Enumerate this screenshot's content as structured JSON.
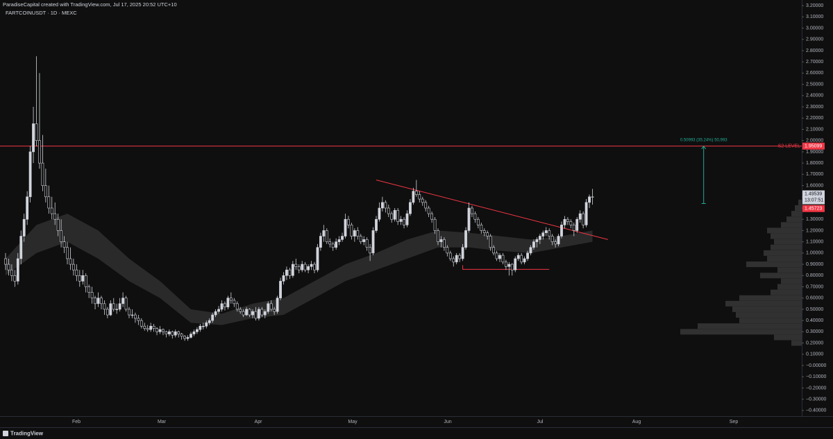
{
  "header": {
    "credit": "ParadiseCapital created with TradingView.com, Jul 17, 2025 20:52 UTC+10",
    "symbol": "FARTCOINUSDT · 1D · MEXC"
  },
  "footer": {
    "brand": "TradingView"
  },
  "chart_data": {
    "type": "candlestick",
    "up_color": "#d1d4dc",
    "down_color": "#0f0f0f",
    "ylim": [
      -0.45,
      3.25
    ],
    "yticks": [
      {
        "value": 3.2,
        "label": "3.20000"
      },
      {
        "value": 3.1,
        "label": "3.10000"
      },
      {
        "value": 3.0,
        "label": "3.00000"
      },
      {
        "value": 2.9,
        "label": "2.90000"
      },
      {
        "value": 2.8,
        "label": "2.80000"
      },
      {
        "value": 2.7,
        "label": "2.70000"
      },
      {
        "value": 2.6,
        "label": "2.60000"
      },
      {
        "value": 2.5,
        "label": "2.50000"
      },
      {
        "value": 2.4,
        "label": "2.40000"
      },
      {
        "value": 2.3,
        "label": "2.30000"
      },
      {
        "value": 2.2,
        "label": "2.20000"
      },
      {
        "value": 2.1,
        "label": "2.10000"
      },
      {
        "value": 2.0,
        "label": "2.00000"
      },
      {
        "value": 1.9,
        "label": "1.90000"
      },
      {
        "value": 1.8,
        "label": "1.80000"
      },
      {
        "value": 1.7,
        "label": "1.70000"
      },
      {
        "value": 1.6,
        "label": "1.60000"
      },
      {
        "value": 1.5,
        "label": "1.50000"
      },
      {
        "value": 1.4,
        "label": "1.40000"
      },
      {
        "value": 1.3,
        "label": "1.30000"
      },
      {
        "value": 1.2,
        "label": "1.20000"
      },
      {
        "value": 1.1,
        "label": "1.10000"
      },
      {
        "value": 1.0,
        "label": "1.00000"
      },
      {
        "value": 0.9,
        "label": "0.90000"
      },
      {
        "value": 0.8,
        "label": "0.80000"
      },
      {
        "value": 0.7,
        "label": "0.70000"
      },
      {
        "value": 0.6,
        "label": "0.60000"
      },
      {
        "value": 0.5,
        "label": "0.50000"
      },
      {
        "value": 0.4,
        "label": "0.40000"
      },
      {
        "value": 0.3,
        "label": "0.30000"
      },
      {
        "value": 0.2,
        "label": "0.20000"
      },
      {
        "value": 0.1,
        "label": "0.10000"
      },
      {
        "value": 0,
        "label": "−0.00000"
      },
      {
        "value": -0.1,
        "label": "−0.10000"
      },
      {
        "value": -0.2,
        "label": "−0.20000"
      },
      {
        "value": -0.3,
        "label": "−0.30000"
      },
      {
        "value": -0.4,
        "label": "−0.40000"
      }
    ],
    "months": [
      "Feb",
      "Mar",
      "Apr",
      "May",
      "Jun",
      "Jul",
      "Aug",
      "Sep"
    ],
    "candles": [
      [
        0.95,
        1.0,
        0.85,
        0.9
      ],
      [
        0.9,
        0.95,
        0.8,
        0.85
      ],
      [
        0.85,
        0.9,
        0.75,
        0.8
      ],
      [
        0.8,
        0.85,
        0.7,
        0.75
      ],
      [
        0.75,
        1.0,
        0.72,
        0.95
      ],
      [
        0.95,
        1.2,
        0.9,
        1.15
      ],
      [
        1.15,
        1.35,
        1.1,
        1.3
      ],
      [
        1.3,
        1.55,
        1.25,
        1.5
      ],
      [
        1.5,
        1.95,
        1.45,
        1.9
      ],
      [
        1.9,
        2.3,
        1.8,
        2.15
      ],
      [
        2.15,
        2.75,
        1.95,
        2.0
      ],
      [
        2.0,
        2.6,
        1.75,
        1.8
      ],
      [
        1.8,
        2.05,
        1.55,
        1.6
      ],
      [
        1.6,
        1.75,
        1.45,
        1.5
      ],
      [
        1.5,
        1.6,
        1.35,
        1.4
      ],
      [
        1.4,
        1.5,
        1.3,
        1.35
      ],
      [
        1.35,
        1.45,
        1.25,
        1.3
      ],
      [
        1.3,
        1.35,
        1.15,
        1.2
      ],
      [
        1.2,
        1.3,
        1.05,
        1.1
      ],
      [
        1.1,
        1.15,
        1.0,
        1.05
      ],
      [
        1.05,
        1.1,
        0.9,
        0.95
      ],
      [
        0.95,
        1.05,
        0.85,
        0.9
      ],
      [
        0.9,
        0.95,
        0.8,
        0.85
      ],
      [
        0.85,
        0.9,
        0.75,
        0.8
      ],
      [
        0.8,
        0.85,
        0.7,
        0.75
      ],
      [
        0.75,
        0.85,
        0.72,
        0.8
      ],
      [
        0.8,
        0.82,
        0.65,
        0.7
      ],
      [
        0.7,
        0.72,
        0.6,
        0.65
      ],
      [
        0.65,
        0.7,
        0.55,
        0.6
      ],
      [
        0.6,
        0.62,
        0.5,
        0.55
      ],
      [
        0.55,
        0.65,
        0.52,
        0.6
      ],
      [
        0.6,
        0.62,
        0.5,
        0.55
      ],
      [
        0.55,
        0.58,
        0.45,
        0.5
      ],
      [
        0.5,
        0.52,
        0.42,
        0.45
      ],
      [
        0.45,
        0.58,
        0.44,
        0.55
      ],
      [
        0.55,
        0.6,
        0.48,
        0.5
      ],
      [
        0.5,
        0.55,
        0.46,
        0.5
      ],
      [
        0.5,
        0.6,
        0.48,
        0.55
      ],
      [
        0.55,
        0.65,
        0.52,
        0.6
      ],
      [
        0.6,
        0.62,
        0.48,
        0.5
      ],
      [
        0.5,
        0.52,
        0.42,
        0.45
      ],
      [
        0.45,
        0.5,
        0.42,
        0.45
      ],
      [
        0.45,
        0.47,
        0.38,
        0.42
      ],
      [
        0.42,
        0.45,
        0.36,
        0.4
      ],
      [
        0.4,
        0.42,
        0.33,
        0.35
      ],
      [
        0.35,
        0.38,
        0.31,
        0.33
      ],
      [
        0.33,
        0.36,
        0.3,
        0.32
      ],
      [
        0.32,
        0.38,
        0.3,
        0.35
      ],
      [
        0.35,
        0.37,
        0.3,
        0.33
      ],
      [
        0.33,
        0.34,
        0.27,
        0.3
      ],
      [
        0.3,
        0.35,
        0.28,
        0.32
      ],
      [
        0.32,
        0.33,
        0.27,
        0.3
      ],
      [
        0.3,
        0.31,
        0.25,
        0.28
      ],
      [
        0.28,
        0.32,
        0.26,
        0.3
      ],
      [
        0.3,
        0.31,
        0.24,
        0.27
      ],
      [
        0.27,
        0.32,
        0.25,
        0.3
      ],
      [
        0.3,
        0.31,
        0.25,
        0.28
      ],
      [
        0.28,
        0.29,
        0.23,
        0.26
      ],
      [
        0.26,
        0.27,
        0.22,
        0.24
      ],
      [
        0.24,
        0.27,
        0.22,
        0.25
      ],
      [
        0.25,
        0.3,
        0.24,
        0.28
      ],
      [
        0.28,
        0.32,
        0.26,
        0.3
      ],
      [
        0.3,
        0.34,
        0.28,
        0.32
      ],
      [
        0.32,
        0.37,
        0.3,
        0.35
      ],
      [
        0.35,
        0.38,
        0.32,
        0.35
      ],
      [
        0.35,
        0.4,
        0.33,
        0.38
      ],
      [
        0.38,
        0.42,
        0.36,
        0.4
      ],
      [
        0.4,
        0.47,
        0.38,
        0.45
      ],
      [
        0.45,
        0.5,
        0.43,
        0.48
      ],
      [
        0.48,
        0.53,
        0.46,
        0.5
      ],
      [
        0.5,
        0.58,
        0.48,
        0.55
      ],
      [
        0.55,
        0.57,
        0.49,
        0.52
      ],
      [
        0.52,
        0.62,
        0.5,
        0.6
      ],
      [
        0.6,
        0.65,
        0.55,
        0.58
      ],
      [
        0.58,
        0.6,
        0.52,
        0.55
      ],
      [
        0.55,
        0.57,
        0.48,
        0.5
      ],
      [
        0.5,
        0.52,
        0.46,
        0.48
      ],
      [
        0.48,
        0.5,
        0.43,
        0.45
      ],
      [
        0.45,
        0.52,
        0.44,
        0.5
      ],
      [
        0.5,
        0.51,
        0.43,
        0.45
      ],
      [
        0.45,
        0.5,
        0.42,
        0.48
      ],
      [
        0.48,
        0.52,
        0.4,
        0.42
      ],
      [
        0.42,
        0.52,
        0.4,
        0.5
      ],
      [
        0.5,
        0.52,
        0.43,
        0.45
      ],
      [
        0.45,
        0.5,
        0.42,
        0.48
      ],
      [
        0.48,
        0.57,
        0.46,
        0.55
      ],
      [
        0.55,
        0.58,
        0.48,
        0.5
      ],
      [
        0.5,
        0.52,
        0.45,
        0.48
      ],
      [
        0.48,
        0.62,
        0.46,
        0.6
      ],
      [
        0.6,
        0.78,
        0.58,
        0.75
      ],
      [
        0.75,
        0.83,
        0.72,
        0.8
      ],
      [
        0.8,
        0.88,
        0.76,
        0.85
      ],
      [
        0.85,
        0.87,
        0.77,
        0.8
      ],
      [
        0.8,
        0.93,
        0.78,
        0.9
      ],
      [
        0.9,
        0.95,
        0.85,
        0.88
      ],
      [
        0.88,
        0.9,
        0.82,
        0.85
      ],
      [
        0.85,
        0.93,
        0.83,
        0.9
      ],
      [
        0.9,
        0.92,
        0.83,
        0.85
      ],
      [
        0.85,
        0.9,
        0.82,
        0.88
      ],
      [
        0.88,
        0.93,
        0.85,
        0.9
      ],
      [
        0.9,
        0.92,
        0.82,
        0.85
      ],
      [
        0.85,
        1.08,
        0.83,
        1.05
      ],
      [
        1.05,
        1.18,
        1.02,
        1.15
      ],
      [
        1.15,
        1.25,
        1.1,
        1.2
      ],
      [
        1.2,
        1.22,
        1.08,
        1.1
      ],
      [
        1.1,
        1.13,
        1.05,
        1.08
      ],
      [
        1.08,
        1.1,
        1.02,
        1.05
      ],
      [
        1.05,
        1.13,
        1.03,
        1.1
      ],
      [
        1.1,
        1.15,
        1.07,
        1.12
      ],
      [
        1.12,
        1.18,
        1.1,
        1.15
      ],
      [
        1.15,
        1.35,
        1.13,
        1.3
      ],
      [
        1.3,
        1.33,
        1.22,
        1.25
      ],
      [
        1.25,
        1.27,
        1.12,
        1.15
      ],
      [
        1.15,
        1.22,
        1.1,
        1.2
      ],
      [
        1.2,
        1.23,
        1.12,
        1.15
      ],
      [
        1.15,
        1.17,
        1.08,
        1.1
      ],
      [
        1.1,
        1.15,
        1.07,
        1.12
      ],
      [
        1.12,
        1.14,
        1.02,
        1.05
      ],
      [
        1.05,
        1.08,
        0.93,
        1.0
      ],
      [
        1.0,
        1.23,
        0.98,
        1.2
      ],
      [
        1.2,
        1.33,
        1.18,
        1.3
      ],
      [
        1.3,
        1.45,
        1.28,
        1.4
      ],
      [
        1.4,
        1.5,
        1.37,
        1.45
      ],
      [
        1.45,
        1.47,
        1.36,
        1.4
      ],
      [
        1.4,
        1.43,
        1.32,
        1.35
      ],
      [
        1.35,
        1.37,
        1.27,
        1.3
      ],
      [
        1.3,
        1.4,
        1.28,
        1.38
      ],
      [
        1.38,
        1.4,
        1.25,
        1.28
      ],
      [
        1.28,
        1.33,
        1.25,
        1.3
      ],
      [
        1.3,
        1.32,
        1.22,
        1.25
      ],
      [
        1.25,
        1.38,
        1.23,
        1.35
      ],
      [
        1.35,
        1.48,
        1.33,
        1.45
      ],
      [
        1.45,
        1.58,
        1.43,
        1.55
      ],
      [
        1.55,
        1.65,
        1.5,
        1.52
      ],
      [
        1.52,
        1.55,
        1.45,
        1.48
      ],
      [
        1.48,
        1.5,
        1.42,
        1.45
      ],
      [
        1.45,
        1.47,
        1.37,
        1.4
      ],
      [
        1.4,
        1.42,
        1.32,
        1.35
      ],
      [
        1.35,
        1.37,
        1.27,
        1.3
      ],
      [
        1.3,
        1.32,
        1.17,
        1.2
      ],
      [
        1.2,
        1.22,
        1.07,
        1.1
      ],
      [
        1.1,
        1.15,
        1.05,
        1.12
      ],
      [
        1.12,
        1.14,
        1.02,
        1.05
      ],
      [
        1.05,
        1.07,
        0.97,
        1.0
      ],
      [
        1.0,
        1.02,
        0.93,
        0.95
      ],
      [
        0.95,
        0.97,
        0.88,
        0.92
      ],
      [
        0.92,
        1.0,
        0.9,
        0.98
      ],
      [
        0.98,
        1.0,
        0.92,
        0.95
      ],
      [
        0.95,
        1.08,
        0.93,
        1.05
      ],
      [
        1.05,
        1.23,
        1.03,
        1.2
      ],
      [
        1.2,
        1.45,
        1.18,
        1.4
      ],
      [
        1.4,
        1.42,
        1.32,
        1.35
      ],
      [
        1.35,
        1.37,
        1.27,
        1.3
      ],
      [
        1.3,
        1.32,
        1.22,
        1.25
      ],
      [
        1.25,
        1.27,
        1.17,
        1.2
      ],
      [
        1.2,
        1.22,
        1.15,
        1.18
      ],
      [
        1.18,
        1.2,
        1.12,
        1.15
      ],
      [
        1.15,
        1.17,
        1.02,
        1.05
      ],
      [
        1.05,
        1.07,
        0.98,
        1.0
      ],
      [
        1.0,
        1.02,
        0.93,
        0.95
      ],
      [
        0.95,
        1.0,
        0.92,
        0.98
      ],
      [
        0.98,
        1.0,
        0.9,
        0.92
      ],
      [
        0.92,
        0.94,
        0.85,
        0.88
      ],
      [
        0.88,
        0.92,
        0.8,
        0.9
      ],
      [
        0.9,
        0.91,
        0.8,
        0.85
      ],
      [
        0.85,
        0.97,
        0.83,
        0.95
      ],
      [
        0.95,
        1.0,
        0.93,
        0.98
      ],
      [
        0.98,
        1.0,
        0.9,
        0.92
      ],
      [
        0.92,
        0.97,
        0.9,
        0.95
      ],
      [
        0.95,
        1.02,
        0.93,
        1.0
      ],
      [
        1.0,
        1.07,
        0.98,
        1.05
      ],
      [
        1.05,
        1.12,
        1.03,
        1.1
      ],
      [
        1.1,
        1.14,
        1.05,
        1.12
      ],
      [
        1.12,
        1.17,
        1.08,
        1.15
      ],
      [
        1.15,
        1.2,
        1.12,
        1.18
      ],
      [
        1.18,
        1.23,
        1.15,
        1.2
      ],
      [
        1.2,
        1.22,
        1.12,
        1.15
      ],
      [
        1.15,
        1.17,
        1.07,
        1.1
      ],
      [
        1.1,
        1.12,
        1.05,
        1.08
      ],
      [
        1.08,
        1.17,
        1.06,
        1.15
      ],
      [
        1.15,
        1.28,
        1.13,
        1.25
      ],
      [
        1.25,
        1.33,
        1.22,
        1.3
      ],
      [
        1.3,
        1.32,
        1.25,
        1.28
      ],
      [
        1.28,
        1.3,
        1.22,
        1.25
      ],
      [
        1.25,
        1.27,
        1.15,
        1.2
      ],
      [
        1.2,
        1.32,
        1.18,
        1.3
      ],
      [
        1.3,
        1.38,
        1.27,
        1.35
      ],
      [
        1.35,
        1.37,
        1.22,
        1.25
      ],
      [
        1.25,
        1.48,
        1.23,
        1.45
      ],
      [
        1.45,
        1.52,
        1.4,
        1.5
      ],
      [
        1.5,
        1.57,
        1.43,
        1.49539
      ]
    ],
    "ma_band": {
      "x": [
        0,
        10,
        20,
        30,
        40,
        50,
        60,
        70,
        80,
        90,
        100,
        110,
        120,
        130,
        140,
        150,
        160,
        170,
        180,
        190
      ],
      "upper": [
        0.95,
        1.25,
        1.35,
        1.2,
        0.95,
        0.75,
        0.5,
        0.46,
        0.55,
        0.6,
        0.75,
        0.9,
        1.0,
        1.12,
        1.2,
        1.18,
        1.15,
        1.12,
        1.15,
        1.2
      ],
      "lower": [
        0.8,
        1.0,
        1.1,
        0.95,
        0.75,
        0.6,
        0.38,
        0.36,
        0.42,
        0.45,
        0.6,
        0.75,
        0.85,
        0.95,
        1.05,
        1.05,
        1.02,
        1.0,
        1.05,
        1.1
      ]
    },
    "volume_profile": {
      "prices": [
        0.2,
        0.25,
        0.3,
        0.35,
        0.4,
        0.45,
        0.5,
        0.55,
        0.6,
        0.65,
        0.7,
        0.75,
        0.8,
        0.85,
        0.9,
        0.95,
        1.0,
        1.05,
        1.1,
        1.15,
        1.2,
        1.25,
        1.3,
        1.35,
        1.4,
        1.45
      ],
      "values": [
        15,
        40,
        175,
        150,
        90,
        95,
        100,
        110,
        90,
        45,
        35,
        30,
        60,
        35,
        80,
        50,
        55,
        45,
        40,
        45,
        50,
        30,
        22,
        15,
        10,
        5
      ],
      "xlim": [
        0,
        200
      ]
    },
    "s2_level": {
      "label": "S2 LEVEL",
      "value": 1.95099,
      "value_label": "1.95099",
      "color": "#f23645"
    },
    "last_price": {
      "value": 1.49539,
      "value_label": "1.49539",
      "countdown": "13:07:51"
    },
    "alt_price": {
      "value": 1.45723,
      "value_label": "1.45723"
    },
    "trendline": {
      "x": [
        120,
        195
      ],
      "y": [
        1.65,
        1.12
      ],
      "color": "#f23645"
    },
    "support": {
      "x": [
        148,
        176
      ],
      "y": [
        0.855,
        0.855
      ],
      "color": "#f23645"
    },
    "measure": {
      "x": 226,
      "y": [
        1.44,
        1.95
      ],
      "label": "0.50993 (35.24%) 50,993",
      "color": "#22ab94"
    }
  }
}
